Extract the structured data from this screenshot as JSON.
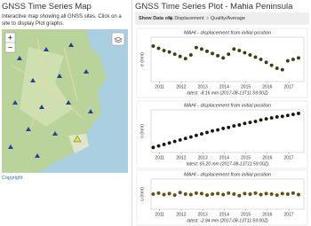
{
  "left": {
    "title": "GNSS Time Series Map",
    "description": "Interactive map showing all GNSS sites. Click on a site to display Plot graphs.",
    "zoom_in": "+",
    "zoom_out": "−",
    "copyright": "Copyright"
  },
  "right": {
    "title": "GNSS Time Series Plot - Mahia Peninsula",
    "show_data_label": "Show Data of",
    "options": [
      "Displacement",
      "Quality/Average"
    ]
  },
  "plots": [
    {
      "type": "scatter",
      "title": "MAHI - displacement from initial position",
      "axis_label": "e (mm)",
      "latest": "latest: -8.16 mm (2017-08-13T11:59:00Z)",
      "color": "#4a4200",
      "xlim": [
        2010.6,
        2017.7
      ],
      "xticks": [
        2011,
        2012,
        2013,
        2014,
        2015,
        2016,
        2017
      ],
      "ylim": [
        -40,
        20
      ],
      "x": [
        2010.7,
        2010.95,
        2011.2,
        2011.45,
        2011.7,
        2011.95,
        2012.2,
        2012.45,
        2012.7,
        2012.95,
        2013.2,
        2013.45,
        2013.7,
        2013.95,
        2014.2,
        2014.45,
        2014.7,
        2014.95,
        2015.2,
        2015.45,
        2015.7,
        2015.95,
        2016.2,
        2016.45,
        2016.7,
        2016.95,
        2017.2,
        2017.45
      ],
      "values": [
        8,
        5,
        2,
        0,
        -3,
        -6,
        -9,
        -4,
        6,
        4,
        1,
        -2,
        -5,
        -8,
        -3,
        4,
        2,
        -1,
        -4,
        -7,
        -10,
        -14,
        -18,
        -22,
        -24,
        -12,
        -10,
        -8
      ]
    },
    {
      "type": "scatter",
      "title": "MAHI - displacement from initial position",
      "axis_label": "n (mm)",
      "latest": "latest: 65.20 mm (2017-08-13T11:59:00Z)",
      "color": "#1a1a00",
      "xlim": [
        2010.6,
        2017.7
      ],
      "xticks": [
        2011,
        2012,
        2013,
        2014,
        2015,
        2016,
        2017
      ],
      "ylim": [
        -10,
        75
      ],
      "x": [
        2010.7,
        2010.95,
        2011.2,
        2011.45,
        2011.7,
        2011.95,
        2012.2,
        2012.45,
        2012.7,
        2012.95,
        2013.2,
        2013.45,
        2013.7,
        2013.95,
        2014.2,
        2014.45,
        2014.7,
        2014.95,
        2015.2,
        2015.45,
        2015.7,
        2015.95,
        2016.2,
        2016.45,
        2016.7,
        2016.95,
        2017.2,
        2017.45
      ],
      "values": [
        0,
        3,
        6,
        9,
        12,
        15,
        18,
        21,
        24,
        27,
        30,
        33,
        35,
        38,
        40,
        43,
        45,
        48,
        50,
        52,
        55,
        57,
        59,
        61,
        62,
        64,
        66,
        68
      ]
    },
    {
      "type": "scatter",
      "title": "MAHI - displacement from initial position",
      "axis_label": "u (mm)",
      "latest": "latest: -2.94 mm (2017-08-13T11:59:00Z)",
      "color": "#6b5a00",
      "xlim": [
        2010.6,
        2017.7
      ],
      "xticks": [
        2011,
        2012,
        2013,
        2014,
        2015,
        2016,
        2017
      ],
      "ylim": [
        -30,
        30
      ],
      "x": [
        2010.7,
        2010.95,
        2011.2,
        2011.45,
        2011.7,
        2011.95,
        2012.2,
        2012.45,
        2012.7,
        2012.95,
        2013.2,
        2013.45,
        2013.7,
        2013.95,
        2014.2,
        2014.45,
        2014.7,
        2014.95,
        2015.2,
        2015.45,
        2015.7,
        2015.95,
        2016.2,
        2016.45,
        2016.7,
        2016.95,
        2017.2,
        2017.45
      ],
      "values": [
        0,
        2,
        -1,
        1,
        -2,
        3,
        0,
        -1,
        2,
        1,
        -2,
        0,
        1,
        -1,
        2,
        0,
        -3,
        1,
        0,
        2,
        -1,
        1,
        0,
        -2,
        1,
        0,
        2,
        -1
      ]
    }
  ]
}
